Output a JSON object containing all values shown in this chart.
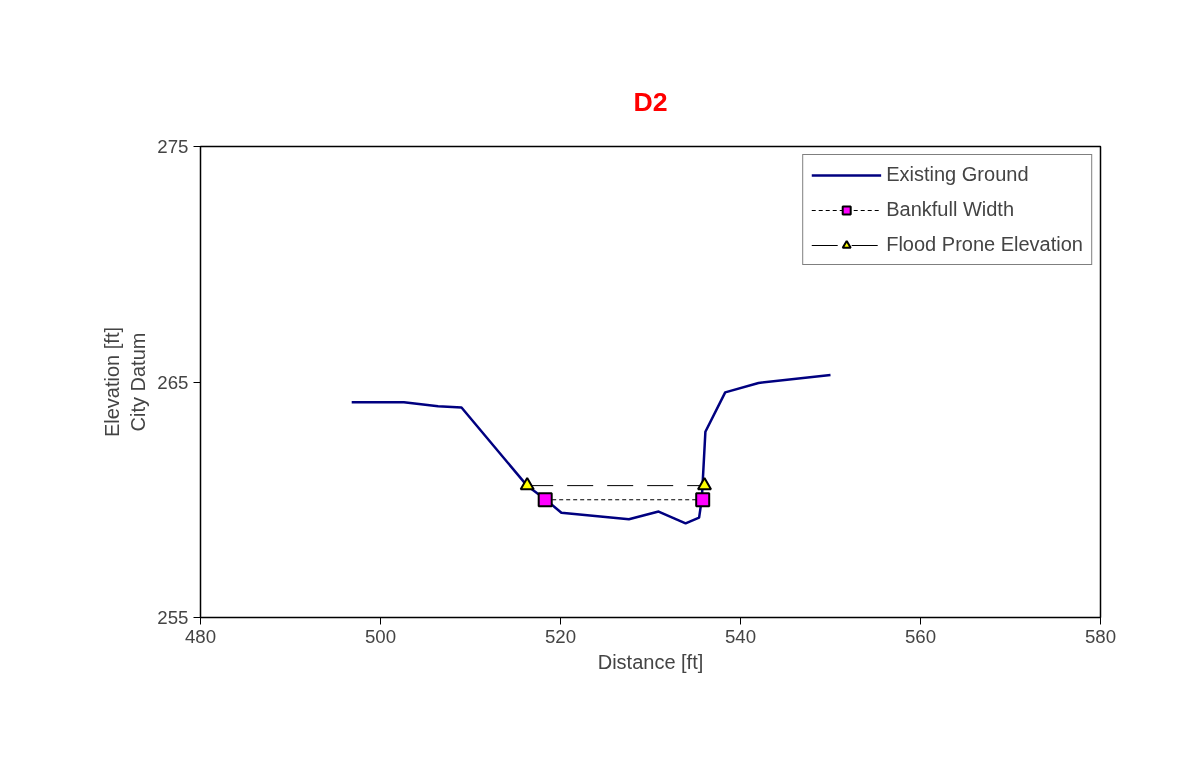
{
  "chart_data": {
    "type": "line",
    "title": "D2",
    "xlabel": "Distance [ft]",
    "ylabel": "Elevation [ft]\nCity Datum",
    "xlim": [
      480,
      580
    ],
    "xticks": [
      480,
      500,
      520,
      540,
      560,
      580
    ],
    "ylim": [
      255,
      275
    ],
    "yticks": [
      255,
      265,
      275
    ],
    "grid": false,
    "legend": "top right",
    "series": [
      {
        "name": "Existing Ground",
        "color": "#000080",
        "marker": "none",
        "line_style": "solid",
        "x": [
          496.8,
          502.6,
          506.4,
          509.0,
          516.3,
          518.3,
          520.1,
          527.6,
          530.9,
          533.9,
          535.4,
          535.7,
          536.1,
          538.3,
          542.0,
          550.0
        ],
        "values": [
          264.14,
          264.14,
          263.97,
          263.92,
          260.59,
          260.02,
          259.45,
          259.17,
          259.5,
          259.0,
          259.24,
          260.02,
          262.89,
          264.56,
          264.96,
          265.3
        ]
      },
      {
        "name": "Bankfull Width",
        "color": "#ff00ff",
        "marker": "square",
        "line_style": "dashed",
        "x": [
          518.3,
          535.8
        ],
        "values": [
          260.0,
          260.0
        ]
      },
      {
        "name": "Flood Prone Elevation",
        "color": "#ffff00",
        "marker": "triangle",
        "line_style": "longdash",
        "x": [
          516.3,
          536.0
        ],
        "values": [
          260.6,
          260.6
        ]
      }
    ]
  }
}
